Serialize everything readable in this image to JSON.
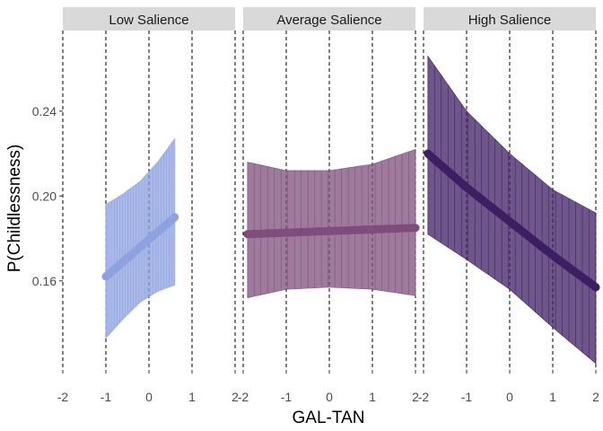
{
  "chart_data": {
    "type": "line",
    "xlabel": "GAL-TAN",
    "ylabel": "P(Childlessness)",
    "xlim": [
      -2,
      2
    ],
    "ylim": [
      0.118,
      0.278
    ],
    "x_ticks": [
      -2,
      -1,
      0,
      1,
      2
    ],
    "x_tick_labels": [
      "-2",
      "-1",
      "0",
      "1",
      "2"
    ],
    "y_ticks": [
      0.16,
      0.2,
      0.24
    ],
    "y_tick_labels": [
      "0.16",
      "0.20",
      "0.24"
    ],
    "grid": "dashed vertical lines at x ticks",
    "panels": [
      {
        "label": "Low Salience",
        "color": "#8ea2e0",
        "line": {
          "x": [
            -1,
            0.6
          ],
          "y": [
            0.162,
            0.19
          ]
        },
        "band": {
          "x": [
            -1.0,
            -0.6,
            -0.2,
            0.2,
            0.6
          ],
          "lower": [
            0.133,
            0.142,
            0.15,
            0.155,
            0.158
          ],
          "upper": [
            0.196,
            0.201,
            0.207,
            0.216,
            0.227
          ]
        }
      },
      {
        "label": "Average Salience",
        "color": "#7e4d7c",
        "line": {
          "x": [
            -1.9,
            2.0
          ],
          "y": [
            0.182,
            0.185
          ]
        },
        "band": {
          "x": [
            -1.9,
            -1.0,
            0.0,
            1.0,
            2.0
          ],
          "lower": [
            0.152,
            0.156,
            0.157,
            0.156,
            0.153
          ],
          "upper": [
            0.216,
            0.212,
            0.212,
            0.215,
            0.222
          ]
        }
      },
      {
        "label": "High Salience",
        "color": "#3d1e63",
        "line": {
          "x": [
            -1.9,
            -1.0,
            0.0,
            1.0,
            2.0
          ],
          "y": [
            0.22,
            0.204,
            0.188,
            0.172,
            0.157
          ]
        },
        "band": {
          "x": [
            -1.9,
            -1.0,
            0.0,
            1.0,
            2.0
          ],
          "lower": [
            0.182,
            0.17,
            0.156,
            0.138,
            0.121
          ],
          "upper": [
            0.266,
            0.24,
            0.22,
            0.203,
            0.192
          ]
        }
      }
    ]
  },
  "colors": {
    "strip_bg": "#d9d9d9",
    "grid": "#000000"
  }
}
